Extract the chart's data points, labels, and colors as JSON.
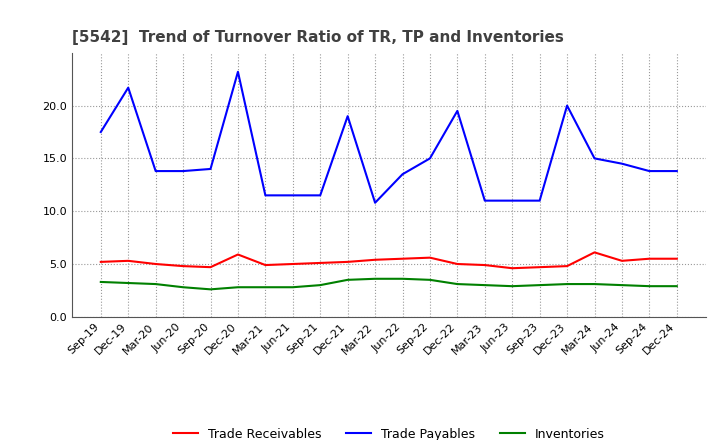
{
  "title": "[5542]  Trend of Turnover Ratio of TR, TP and Inventories",
  "x_labels": [
    "Sep-19",
    "Dec-19",
    "Mar-20",
    "Jun-20",
    "Sep-20",
    "Dec-20",
    "Mar-21",
    "Jun-21",
    "Sep-21",
    "Dec-21",
    "Mar-22",
    "Jun-22",
    "Sep-22",
    "Dec-22",
    "Mar-23",
    "Jun-23",
    "Sep-23",
    "Dec-23",
    "Mar-24",
    "Jun-24",
    "Sep-24",
    "Dec-24"
  ],
  "trade_receivables": [
    5.2,
    5.3,
    5.0,
    4.8,
    4.7,
    5.9,
    4.9,
    5.0,
    5.1,
    5.2,
    5.4,
    5.5,
    5.6,
    5.0,
    4.9,
    4.6,
    4.7,
    4.8,
    6.1,
    5.3,
    5.5,
    5.5
  ],
  "trade_payables": [
    17.5,
    21.7,
    13.8,
    13.8,
    14.0,
    23.2,
    11.5,
    11.5,
    11.5,
    19.0,
    10.8,
    13.5,
    15.0,
    19.5,
    11.0,
    11.0,
    11.0,
    20.0,
    15.0,
    14.5,
    13.8,
    13.8
  ],
  "inventories": [
    3.3,
    3.2,
    3.1,
    2.8,
    2.6,
    2.8,
    2.8,
    2.8,
    3.0,
    3.5,
    3.6,
    3.6,
    3.5,
    3.1,
    3.0,
    2.9,
    3.0,
    3.1,
    3.1,
    3.0,
    2.9,
    2.9
  ],
  "ylim": [
    0,
    25
  ],
  "yticks": [
    0.0,
    5.0,
    10.0,
    15.0,
    20.0
  ],
  "tr_color": "#ff0000",
  "tp_color": "#0000ff",
  "inv_color": "#008000",
  "background_color": "#ffffff",
  "grid_color": "#999999",
  "title_color": "#404040",
  "title_fontsize": 11,
  "legend_fontsize": 9,
  "tick_fontsize": 8
}
